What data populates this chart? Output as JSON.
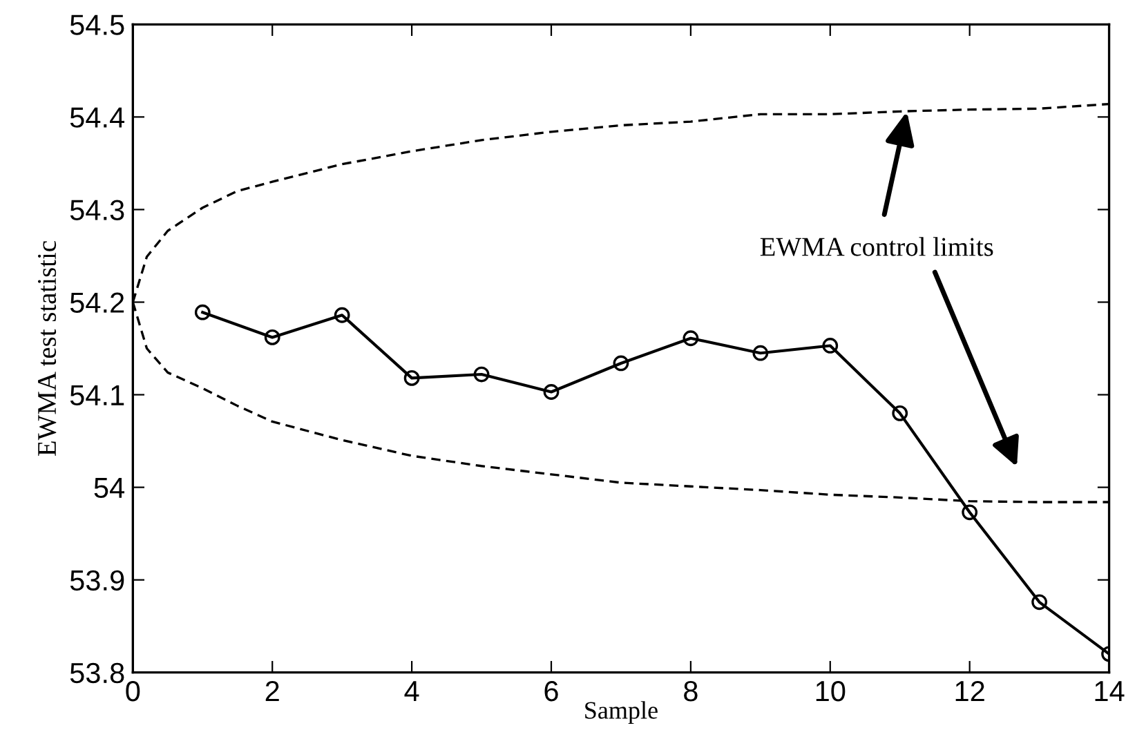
{
  "chart_data": {
    "type": "line",
    "xlabel": "Sample",
    "ylabel": "EWMA test statistic",
    "xlim": [
      0,
      14
    ],
    "ylim": [
      53.8,
      54.5
    ],
    "xticks": [
      0,
      2,
      4,
      6,
      8,
      10,
      12,
      14
    ],
    "yticks": [
      53.8,
      53.9,
      54,
      54.1,
      54.2,
      54.3,
      54.4,
      54.5
    ],
    "grid": false,
    "series": [
      {
        "color": "#000000",
        "marker": "circle",
        "line_style": "solid",
        "x": [
          1,
          2,
          3,
          4,
          5,
          6,
          7,
          8,
          9,
          10,
          11,
          12,
          13,
          14
        ],
        "values": [
          54.189,
          54.162,
          54.186,
          54.118,
          54.122,
          54.103,
          54.134,
          54.161,
          54.145,
          54.153,
          54.08,
          53.973,
          53.876,
          53.82
        ]
      },
      {
        "color": "#000000",
        "marker": "none",
        "line_style": "dashed",
        "x": [
          0,
          0.2,
          0.5,
          1,
          1.5,
          2,
          3,
          4,
          5,
          6,
          7,
          8,
          9,
          10,
          11,
          12,
          13,
          14
        ],
        "values": [
          54.2,
          54.249,
          54.277,
          54.302,
          54.32,
          54.33,
          54.349,
          54.363,
          54.375,
          54.384,
          54.391,
          54.395,
          54.403,
          54.403,
          54.406,
          54.408,
          54.409,
          54.414
        ]
      },
      {
        "color": "#000000",
        "marker": "none",
        "line_style": "dashed",
        "x": [
          0,
          0.2,
          0.5,
          1,
          1.5,
          2,
          3,
          4,
          5,
          6,
          7,
          8,
          9,
          10,
          11,
          12,
          13,
          14
        ],
        "values": [
          54.2,
          54.15,
          54.124,
          54.107,
          54.088,
          54.071,
          54.051,
          54.034,
          54.023,
          54.014,
          54.005,
          54.001,
          53.997,
          53.992,
          53.989,
          53.985,
          53.984,
          53.984
        ]
      }
    ],
    "annotations": [
      {
        "text": "EWMA control limits",
        "x": 11.1,
        "y": 54.406
      }
    ]
  }
}
